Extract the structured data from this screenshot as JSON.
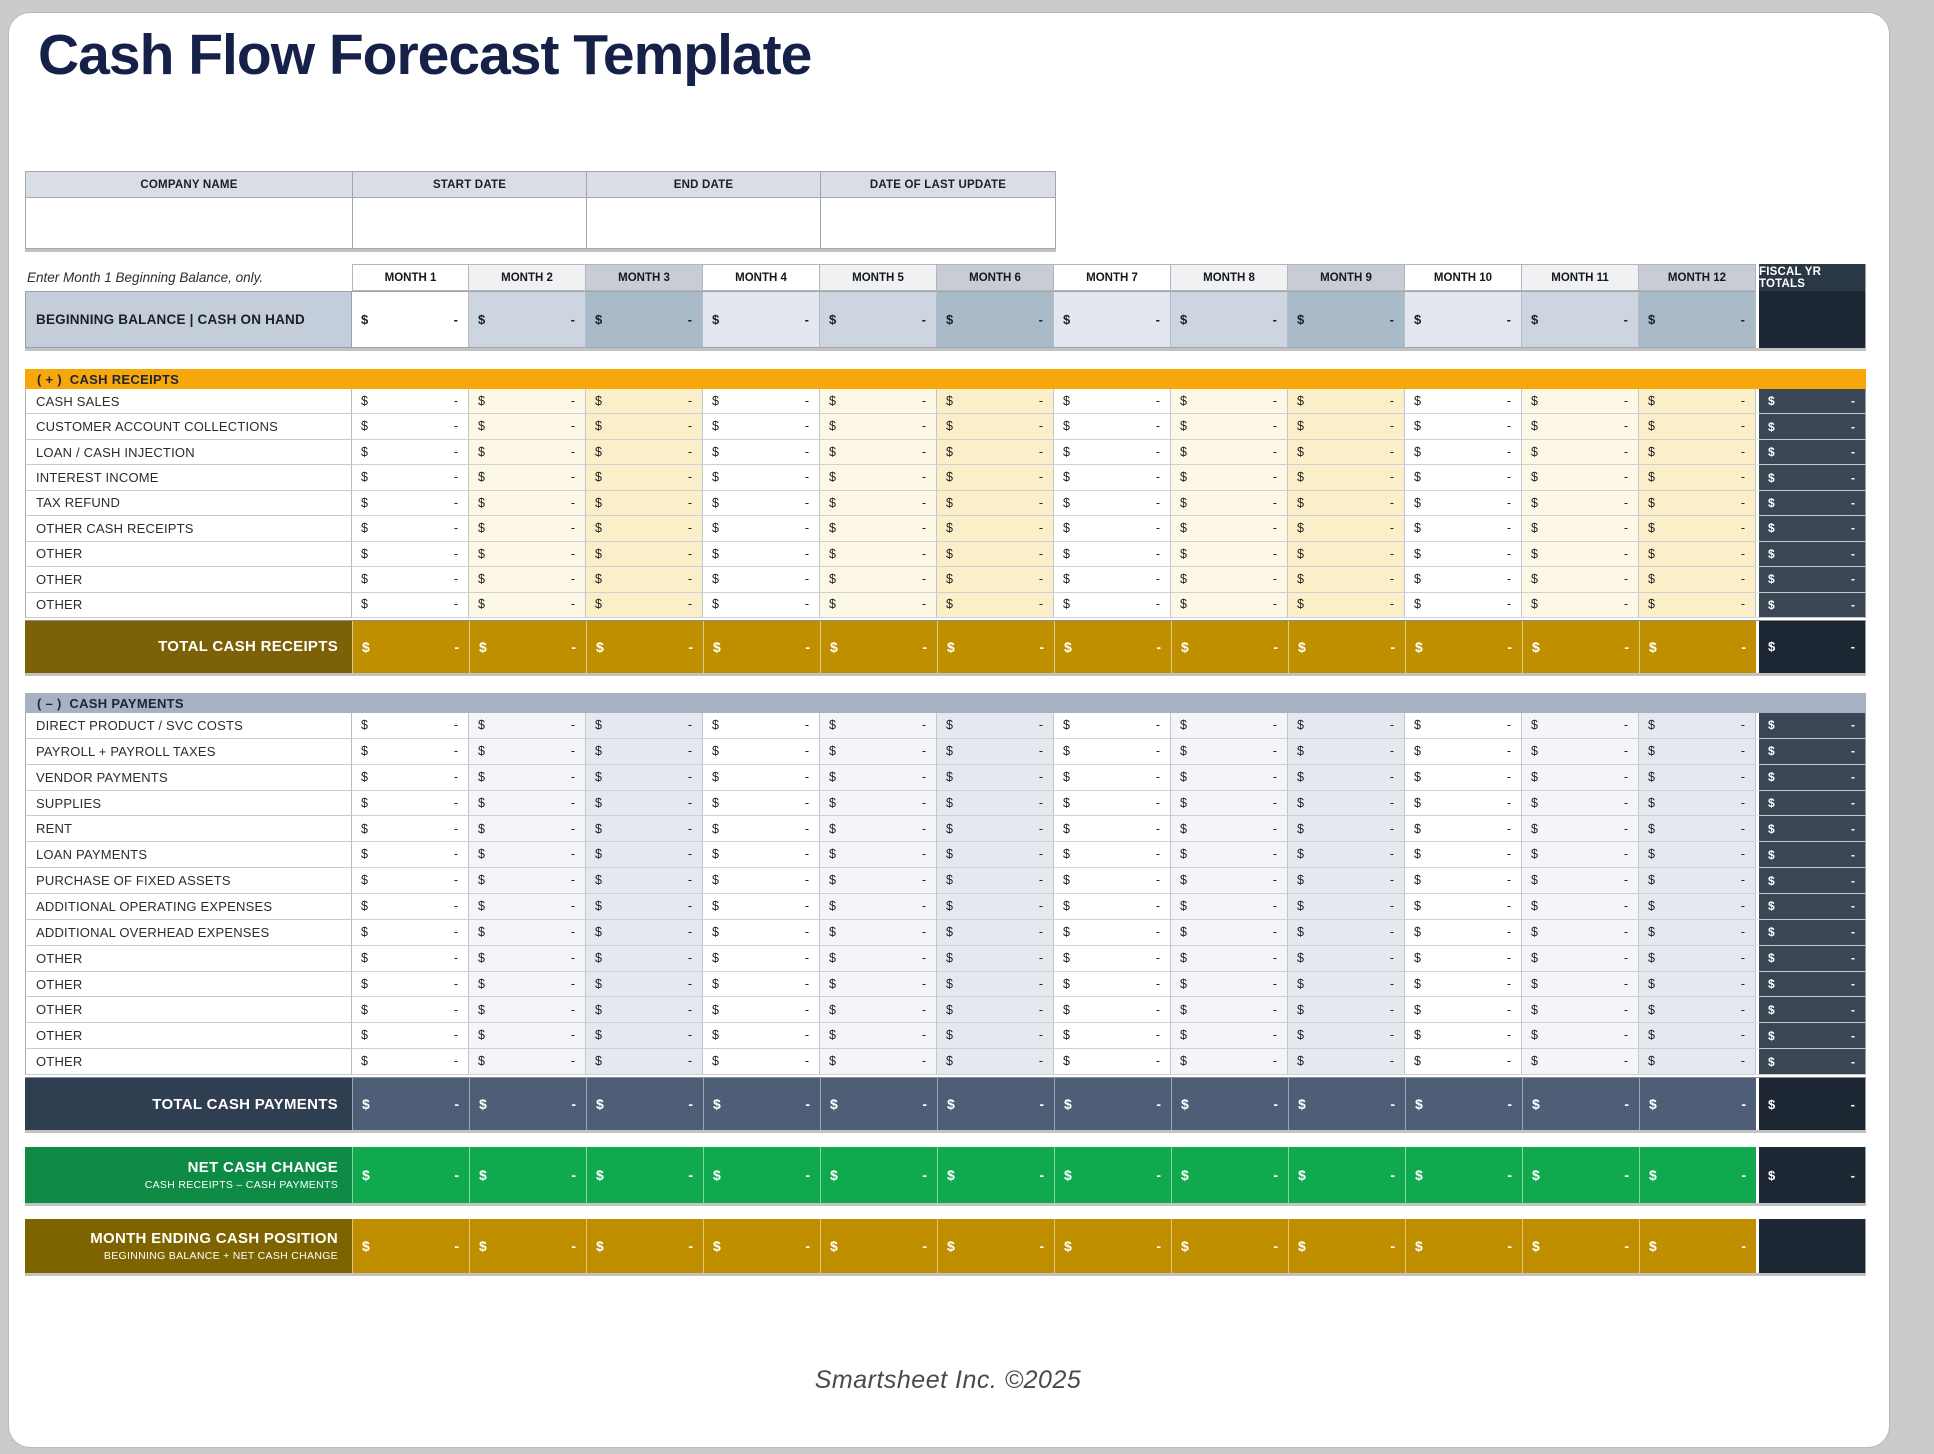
{
  "title": "Cash Flow Forecast Template",
  "info_table": {
    "headers": [
      "COMPANY NAME",
      "START DATE",
      "END DATE",
      "DATE OF LAST UPDATE"
    ],
    "values": [
      "",
      "",
      "",
      ""
    ]
  },
  "months_note": "Enter Month 1 Beginning Balance, only.",
  "month_headers": [
    "MONTH 1",
    "MONTH 2",
    "MONTH 3",
    "MONTH 4",
    "MONTH 5",
    "MONTH 6",
    "MONTH 7",
    "MONTH 8",
    "MONTH 9",
    "MONTH 10",
    "MONTH 11",
    "MONTH 12"
  ],
  "fiscal_header": "FISCAL YR TOTALS",
  "currency_symbol": "$",
  "empty_value": "-",
  "beginning_balance": {
    "label": "BEGINNING BALANCE | CASH ON HAND",
    "fiscal_cell_empty": true
  },
  "receipts": {
    "header": "( + )  CASH RECEIPTS",
    "rows": [
      "CASH SALES",
      "CUSTOMER ACCOUNT COLLECTIONS",
      "LOAN / CASH INJECTION",
      "INTEREST INCOME",
      "TAX REFUND",
      "OTHER CASH RECEIPTS",
      "OTHER",
      "OTHER",
      "OTHER"
    ],
    "total_label": "TOTAL CASH RECEIPTS"
  },
  "payments": {
    "header": "( – )  CASH PAYMENTS",
    "rows": [
      "DIRECT PRODUCT / SVC COSTS",
      "PAYROLL + PAYROLL TAXES",
      "VENDOR PAYMENTS",
      "SUPPLIES",
      "RENT",
      "LOAN PAYMENTS",
      "PURCHASE OF FIXED ASSETS",
      "ADDITIONAL OPERATING EXPENSES",
      "ADDITIONAL OVERHEAD EXPENSES",
      "OTHER",
      "OTHER",
      "OTHER",
      "OTHER",
      "OTHER"
    ],
    "total_label": "TOTAL CASH PAYMENTS"
  },
  "net_cash_change": {
    "label": "NET CASH CHANGE",
    "formula_note": "CASH RECEIPTS – CASH PAYMENTS"
  },
  "month_ending": {
    "label": "MONTH ENDING CASH POSITION",
    "formula_note": "BEGINNING BALANCE + NET CASH CHANGE",
    "fiscal_cell_empty": true
  },
  "footer": "Smartsheet Inc. ©2025",
  "colors": {
    "title_navy": "#16214A",
    "section_gold": "#F8A70A",
    "total_gold": "#BF8F00",
    "total_gold_label": "#7D6106",
    "payments_bar_bluegray": "#A6B2C3",
    "total_slate_label": "#303E52",
    "total_slate": "#4E5E77",
    "fiscal_column_slate": "#3A4654",
    "fiscal_column_dark": "#1D2733",
    "fiscal_header_navy": "#2A3744",
    "net_green_label": "#0E8B44",
    "net_green": "#10A94E",
    "beginning_balance_label_bg": "#C3CEDA",
    "info_header_bg": "#D9DEE5"
  }
}
